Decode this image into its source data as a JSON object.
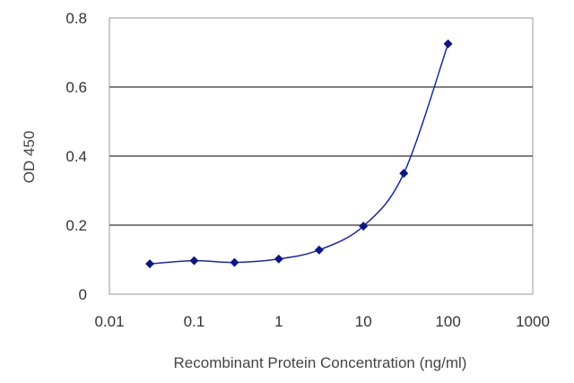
{
  "chart_data": {
    "type": "scatter",
    "title": "",
    "xlabel": "Recombinant Protein Concentration (ng/ml)",
    "ylabel": "OD 450",
    "xscale": "log",
    "xlim": [
      0.01,
      1000
    ],
    "ylim": [
      0,
      0.8
    ],
    "xticks": [
      0.01,
      0.1,
      1,
      10,
      100,
      1000
    ],
    "xtick_labels": [
      "0.01",
      "0.1",
      "1",
      "10",
      "100",
      "1000"
    ],
    "yticks": [
      0,
      0.2,
      0.4,
      0.6,
      0.8
    ],
    "ytick_labels": [
      "0",
      "0.2",
      "0.4",
      "0.6",
      "0.8"
    ],
    "grid": "horizontal",
    "legend": "none",
    "series": [
      {
        "x": [
          0.03,
          0.1,
          0.3,
          1,
          3,
          10,
          30,
          100
        ],
        "y": [
          0.088,
          0.097,
          0.092,
          0.102,
          0.128,
          0.197,
          0.35,
          0.725
        ],
        "marker": "diamond",
        "line": "smooth"
      }
    ],
    "colors": {
      "series": "#1c2a99",
      "marker": "#0d1580",
      "grid": "#7f7f7f",
      "frame": "#999999"
    }
  }
}
